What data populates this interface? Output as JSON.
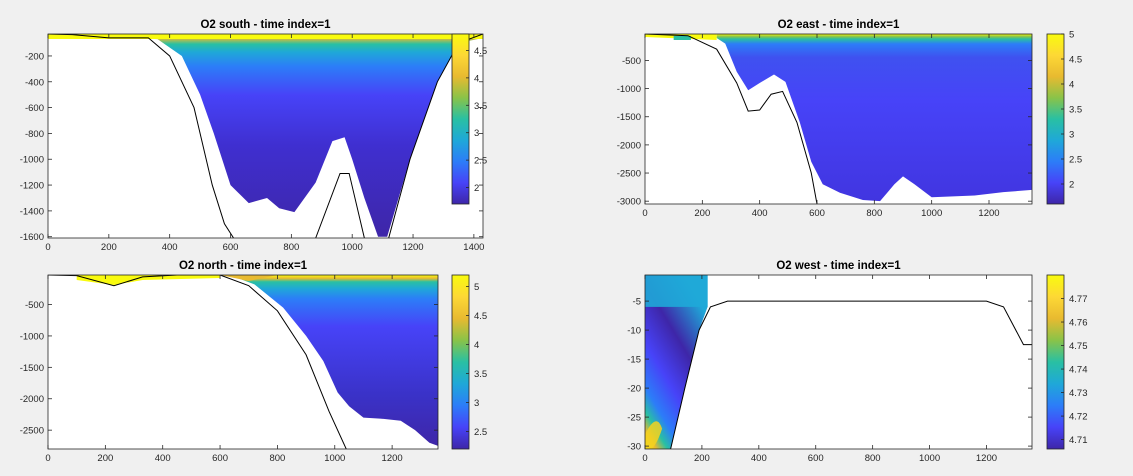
{
  "colorscale": [
    "#3e26a8",
    "#4743f8",
    "#2c7df8",
    "#1fa8d8",
    "#29c0a3",
    "#8ac348",
    "#e8ba30",
    "#fdd835",
    "#f9fb0e"
  ],
  "chart_data": [
    {
      "type": "heatmap",
      "title": "O2 south - time index=1",
      "xlim": [
        0,
        1430
      ],
      "ylim": [
        -1610,
        -30
      ],
      "xticks": [
        0,
        200,
        400,
        600,
        800,
        1000,
        1200,
        1400
      ],
      "yticks": [
        -200,
        -400,
        -600,
        -800,
        -1000,
        -1200,
        -1400,
        -1600
      ],
      "clim": [
        1.7,
        4.8
      ],
      "cticks": [
        2,
        2.5,
        3,
        3.5,
        4,
        4.5
      ],
      "bottom_profile": [
        [
          0,
          -30
        ],
        [
          80,
          -35
        ],
        [
          200,
          -60
        ],
        [
          330,
          -60
        ],
        [
          400,
          -200
        ],
        [
          480,
          -600
        ],
        [
          540,
          -1200
        ],
        [
          580,
          -1500
        ],
        [
          610,
          -1610
        ]
      ],
      "bottom_profile_2": [
        [
          880,
          -1610
        ],
        [
          960,
          -1110
        ],
        [
          990,
          -1110
        ],
        [
          1040,
          -1610
        ]
      ],
      "bottom_profile_3": [
        [
          1120,
          -1610
        ],
        [
          1190,
          -1000
        ],
        [
          1280,
          -400
        ],
        [
          1350,
          -100
        ],
        [
          1430,
          -30
        ]
      ]
    },
    {
      "type": "heatmap",
      "title": "O2 east - time index=1",
      "xlim": [
        0,
        1350
      ],
      "ylim": [
        -3050,
        -30
      ],
      "xticks": [
        0,
        200,
        400,
        600,
        800,
        1000,
        1200
      ],
      "yticks": [
        -500,
        -1000,
        -1500,
        -2000,
        -2500,
        -3000
      ],
      "clim": [
        1.6,
        5
      ],
      "cticks": [
        2,
        2.5,
        3,
        3.5,
        4,
        4.5,
        5
      ],
      "bottom_profile": [
        [
          0,
          -30
        ],
        [
          150,
          -60
        ],
        [
          250,
          -300
        ],
        [
          320,
          -900
        ],
        [
          360,
          -1400
        ],
        [
          400,
          -1380
        ],
        [
          440,
          -1100
        ],
        [
          480,
          -1050
        ],
        [
          530,
          -1600
        ],
        [
          580,
          -2500
        ],
        [
          600,
          -3050
        ]
      ]
    },
    {
      "type": "heatmap",
      "title": "O2 north - time index=1",
      "xlim": [
        0,
        1360
      ],
      "ylim": [
        -2800,
        -30
      ],
      "xticks": [
        0,
        200,
        400,
        600,
        800,
        1000,
        1200
      ],
      "yticks": [
        -500,
        -1000,
        -1500,
        -2000,
        -2500
      ],
      "clim": [
        2.2,
        5.2
      ],
      "cticks": [
        2.5,
        3,
        3.5,
        4,
        4.5,
        5
      ],
      "bottom_profile": [
        [
          0,
          -30
        ],
        [
          100,
          -40
        ],
        [
          230,
          -200
        ],
        [
          330,
          -60
        ],
        [
          450,
          -30
        ],
        [
          600,
          -30
        ],
        [
          700,
          -200
        ],
        [
          800,
          -600
        ],
        [
          900,
          -1300
        ],
        [
          980,
          -2200
        ],
        [
          1040,
          -2800
        ]
      ]
    },
    {
      "type": "heatmap",
      "title": "O2 west - time index=1",
      "xlim": [
        0,
        1360
      ],
      "ylim": [
        -30.5,
        -0.5
      ],
      "xticks": [
        0,
        200,
        400,
        600,
        800,
        1000,
        1200
      ],
      "yticks": [
        -5,
        -10,
        -15,
        -20,
        -25,
        -30
      ],
      "clim": [
        4.706,
        4.78
      ],
      "cticks": [
        4.71,
        4.72,
        4.73,
        4.74,
        4.75,
        4.76,
        4.77
      ],
      "bottom_profile": [
        [
          90,
          -30.5
        ],
        [
          140,
          -20
        ],
        [
          190,
          -10
        ],
        [
          230,
          -6
        ],
        [
          290,
          -5
        ],
        [
          1200,
          -5
        ],
        [
          1260,
          -6
        ],
        [
          1330,
          -12.5
        ],
        [
          1360,
          -12.5
        ]
      ]
    }
  ]
}
